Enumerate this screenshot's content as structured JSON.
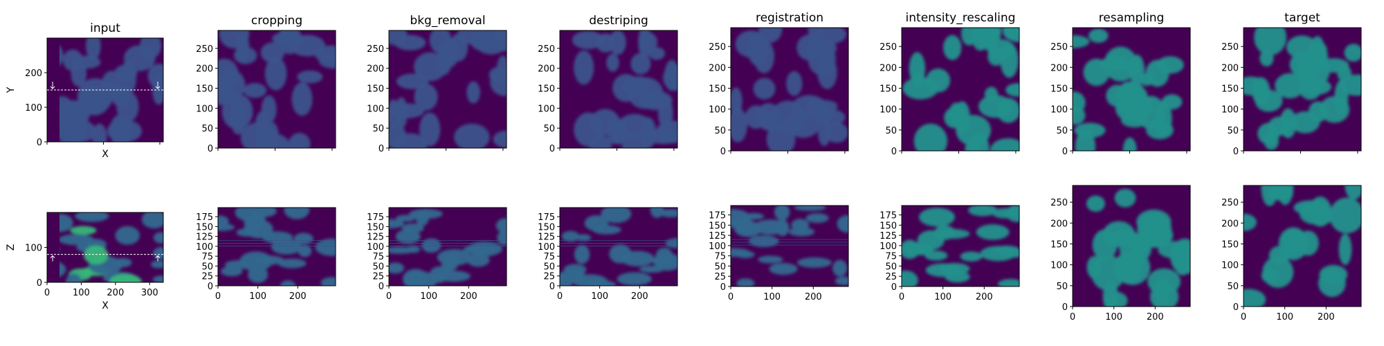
{
  "figure": {
    "y_axis_labels": {
      "xy": "Y",
      "xz": "Z"
    },
    "x_axis_label": "X",
    "panels": [
      {
        "id": "input",
        "title": "input",
        "xy": {
          "yticks": [
            "0",
            "100",
            "200"
          ]
        },
        "xz": {
          "yticks": [
            "0",
            "100"
          ],
          "xticks": [
            "0",
            "100",
            "200",
            "300"
          ]
        }
      },
      {
        "id": "cropping",
        "title": "cropping",
        "xy": {
          "yticks": [
            "0",
            "50",
            "100",
            "150",
            "200",
            "250"
          ]
        },
        "xz": {
          "yticks": [
            "0",
            "25",
            "50",
            "75",
            "100",
            "125",
            "150",
            "175"
          ],
          "xticks": [
            "0",
            "100",
            "200"
          ]
        }
      },
      {
        "id": "bkg_removal",
        "title": "bkg_removal",
        "xy": {
          "yticks": [
            "0",
            "50",
            "100",
            "150",
            "200",
            "250"
          ]
        },
        "xz": {
          "yticks": [
            "0",
            "25",
            "50",
            "75",
            "100",
            "125",
            "150",
            "175"
          ],
          "xticks": [
            "0",
            "100",
            "200"
          ]
        }
      },
      {
        "id": "destriping",
        "title": "destriping",
        "xy": {
          "yticks": [
            "0",
            "50",
            "100",
            "150",
            "200",
            "250"
          ]
        },
        "xz": {
          "yticks": [
            "0",
            "25",
            "50",
            "75",
            "100",
            "125",
            "150",
            "175"
          ],
          "xticks": [
            "0",
            "100",
            "200"
          ]
        }
      },
      {
        "id": "registration",
        "title": "registration",
        "xy": {
          "yticks": [
            "0",
            "50",
            "100",
            "150",
            "200",
            "250"
          ]
        },
        "xz": {
          "yticks": [
            "0",
            "25",
            "50",
            "75",
            "100",
            "125",
            "150",
            "175"
          ],
          "xticks": [
            "0",
            "100",
            "200"
          ]
        }
      },
      {
        "id": "intensity_rescaling",
        "title": "intensity_rescaling",
        "xy": {
          "yticks": [
            "0",
            "50",
            "100",
            "150",
            "200",
            "250"
          ]
        },
        "xz": {
          "yticks": [
            "0",
            "25",
            "50",
            "75",
            "100",
            "125",
            "150",
            "175"
          ],
          "xticks": [
            "0",
            "100",
            "200"
          ]
        }
      },
      {
        "id": "resampling",
        "title": "resampling",
        "xy": {
          "yticks": [
            "0",
            "50",
            "100",
            "150",
            "200",
            "250"
          ]
        },
        "xz": {
          "yticks": [
            "0",
            "50",
            "100",
            "150",
            "200",
            "250"
          ],
          "xticks": [
            "0",
            "100",
            "200"
          ]
        }
      },
      {
        "id": "target",
        "title": "target",
        "xy": {
          "yticks": [
            "0",
            "50",
            "100",
            "150",
            "200",
            "250"
          ]
        },
        "xz": {
          "yticks": [
            "0",
            "50",
            "100",
            "150",
            "200",
            "250"
          ],
          "xticks": [
            "0",
            "100",
            "200"
          ]
        }
      }
    ],
    "colors": {
      "background": "#440154",
      "blob_dim": "#3b528b",
      "blob_mid": "#31688e",
      "blob_bright": "#21918c",
      "blob_hot": "#35b779",
      "guide_line": "#ffffff"
    }
  }
}
